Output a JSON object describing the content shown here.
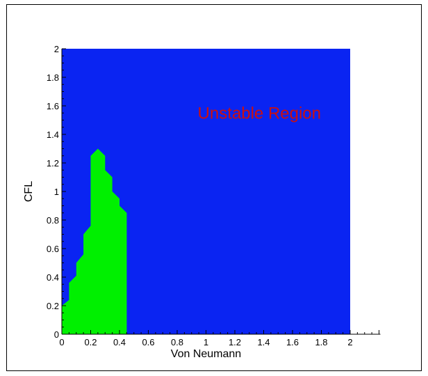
{
  "chart_data": {
    "type": "area",
    "title": "",
    "xlabel": "Von Neumann",
    "ylabel": "CFL",
    "xlim": [
      0,
      2.2
    ],
    "ylim": [
      0,
      2
    ],
    "x_ticks": [
      0,
      0.2,
      0.4,
      0.6,
      0.8,
      1,
      1.2,
      1.4,
      1.6,
      1.8,
      2
    ],
    "x_tick_labels": [
      "0",
      "0.2",
      "0.4",
      "0.6",
      "0.8",
      "1",
      "1.2",
      "1.4",
      "1.6",
      "1.8",
      "2"
    ],
    "y_ticks": [
      0,
      0.2,
      0.4,
      0.6,
      0.8,
      1,
      1.2,
      1.4,
      1.6,
      1.8,
      2
    ],
    "y_tick_labels": [
      "0",
      "0.2",
      "0.4",
      "0.6",
      "0.8",
      "1",
      "1.2",
      "1.4",
      "1.6",
      "1.8",
      "2"
    ],
    "regions": [
      {
        "name": "unstable",
        "color": "#0a24f2",
        "x_range": [
          0,
          2
        ],
        "y_range": [
          0,
          2
        ]
      },
      {
        "name": "stable",
        "color": "#00f000",
        "boundary": [
          [
            0.0,
            0.2
          ],
          [
            0.05,
            0.24
          ],
          [
            0.05,
            0.36
          ],
          [
            0.1,
            0.41
          ],
          [
            0.1,
            0.5
          ],
          [
            0.15,
            0.56
          ],
          [
            0.15,
            0.7
          ],
          [
            0.2,
            0.76
          ],
          [
            0.2,
            1.25
          ],
          [
            0.25,
            1.3
          ],
          [
            0.3,
            1.25
          ],
          [
            0.3,
            1.15
          ],
          [
            0.35,
            1.1
          ],
          [
            0.35,
            1.0
          ],
          [
            0.4,
            0.95
          ],
          [
            0.4,
            0.9
          ],
          [
            0.45,
            0.85
          ],
          [
            0.45,
            0.0
          ],
          [
            0.0,
            0.0
          ]
        ]
      }
    ],
    "annotations": [
      {
        "text": "Unstable Region",
        "x": 1.37,
        "y": 1.55,
        "color": "#cc1010"
      }
    ],
    "grid": false,
    "legend": "none"
  }
}
